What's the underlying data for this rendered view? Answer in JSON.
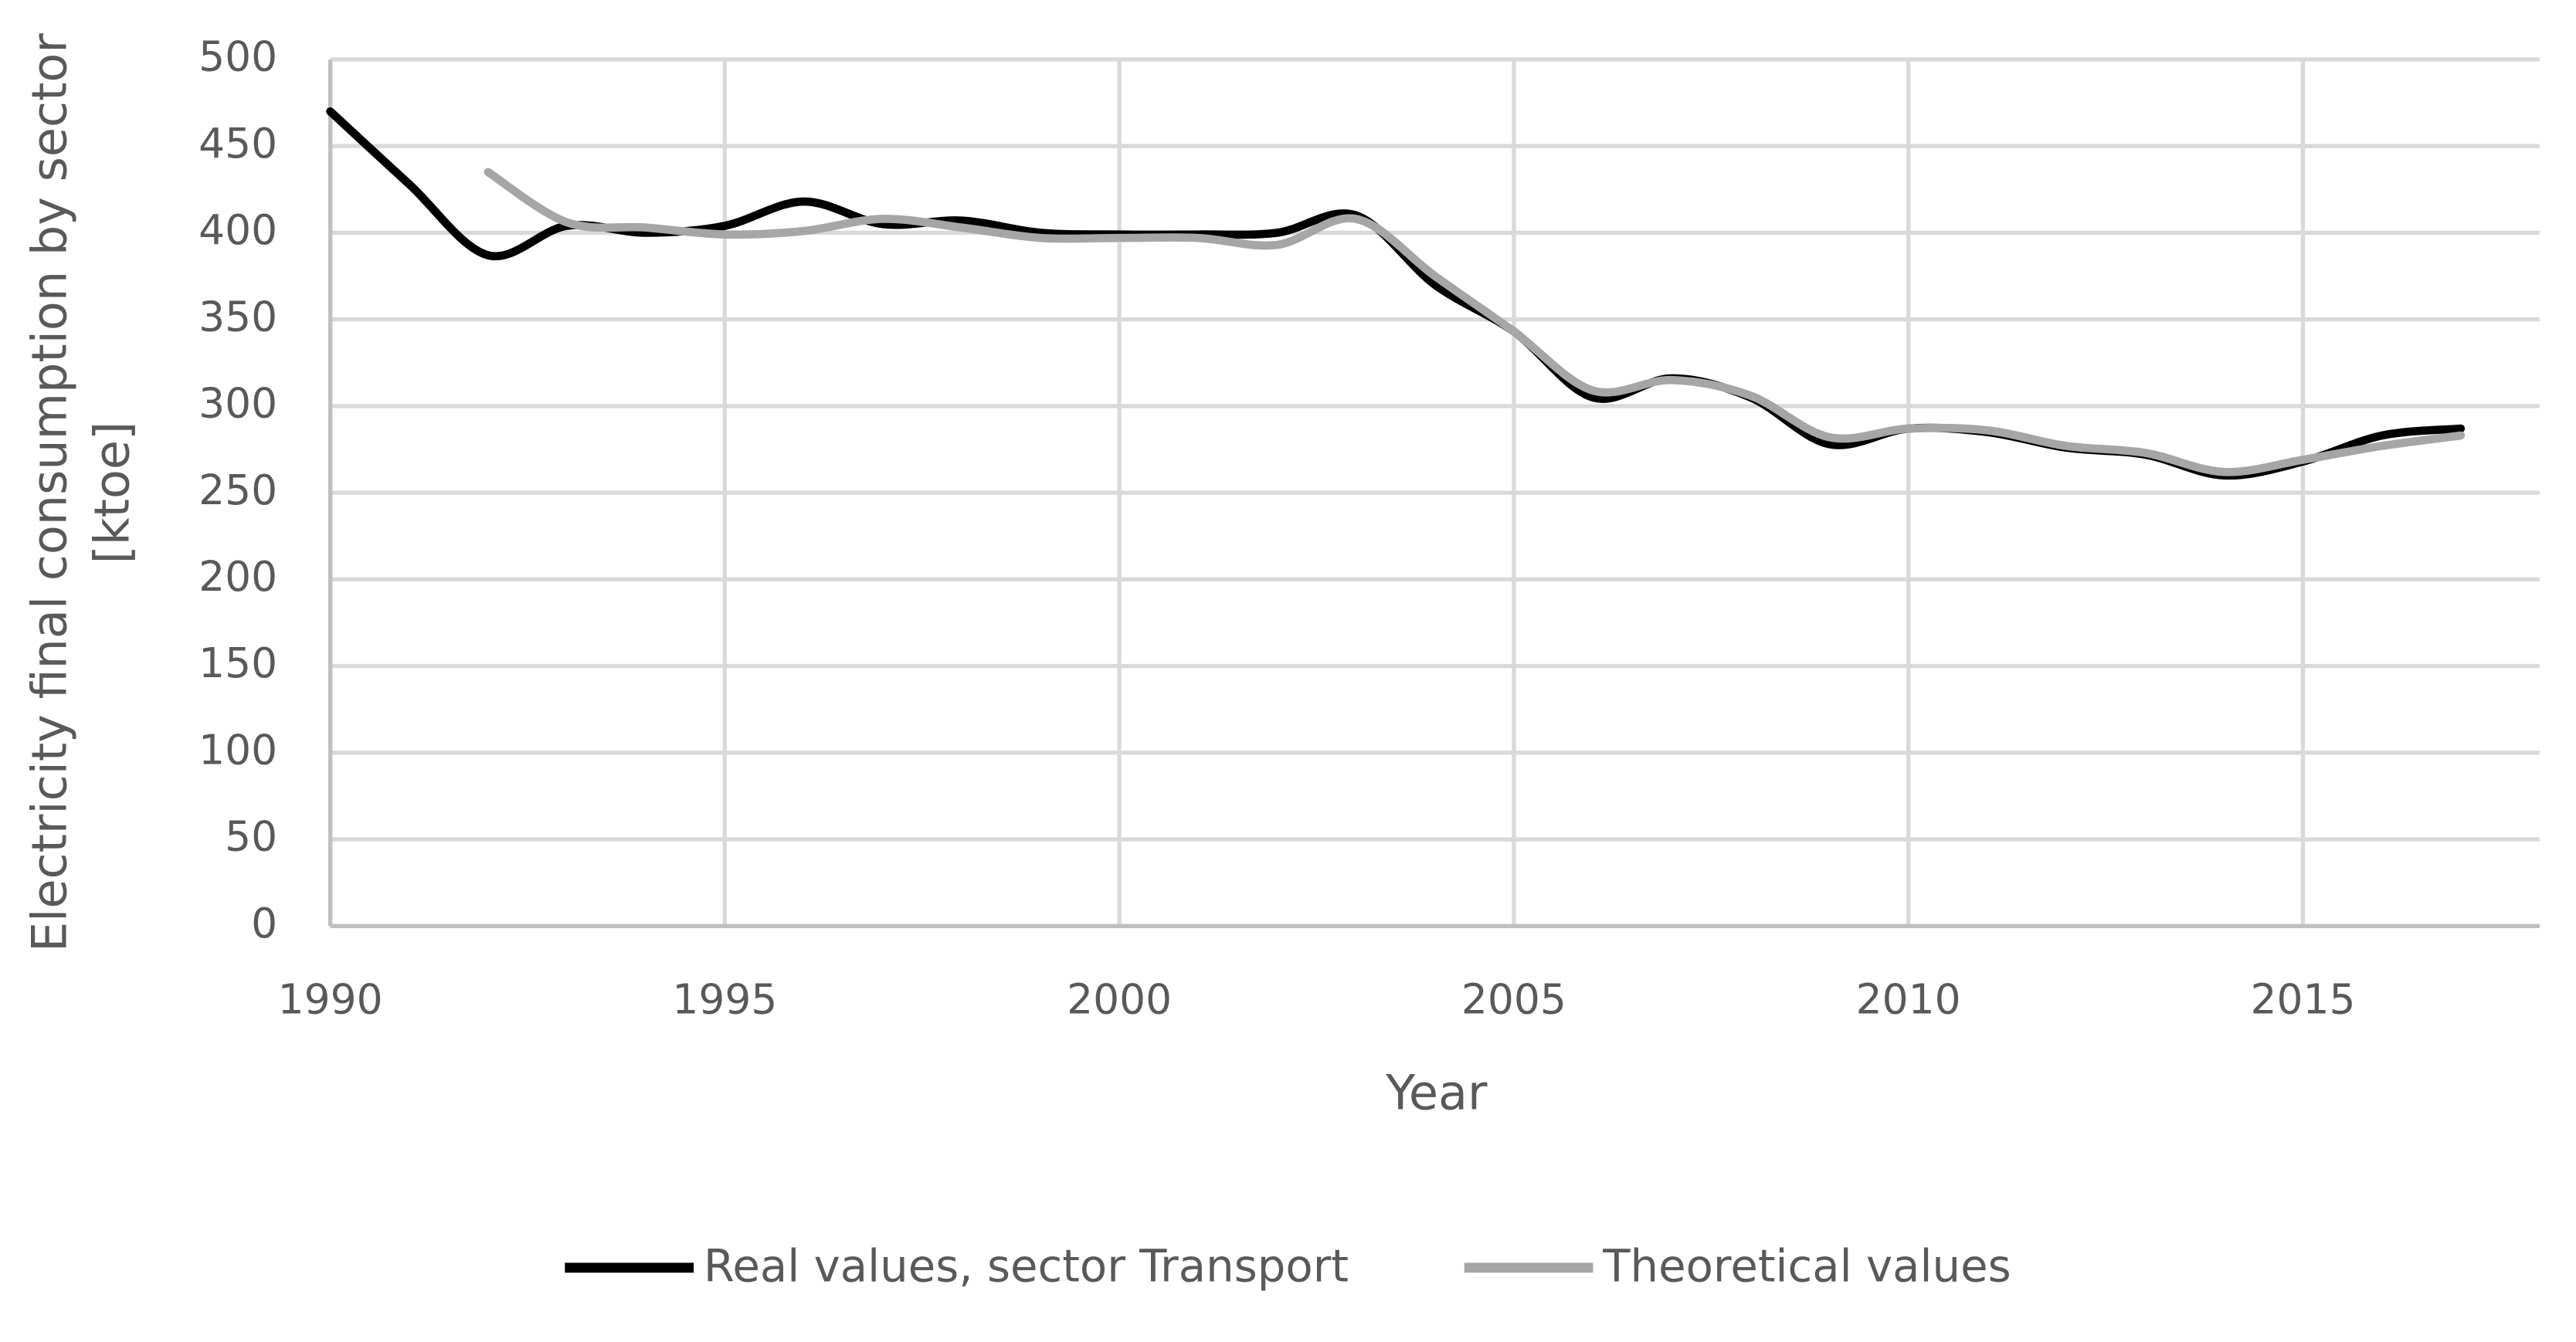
{
  "chart_data": {
    "type": "line",
    "x": [
      1990,
      1991,
      1992,
      1993,
      1994,
      1995,
      1996,
      1997,
      1998,
      1999,
      2000,
      2001,
      2002,
      2003,
      2004,
      2005,
      2006,
      2007,
      2008,
      2009,
      2010,
      2011,
      2012,
      2013,
      2014,
      2015,
      2016,
      2017
    ],
    "series": [
      {
        "name": "Real values, sector Transport",
        "color": "#000000",
        "values": [
          470,
          428,
          387,
          404,
          400,
          404,
          418,
          405,
          407,
          400,
          399,
          399,
          400,
          410,
          370,
          343,
          305,
          316,
          305,
          278,
          287,
          285,
          276,
          272,
          260,
          268,
          283,
          287
        ]
      },
      {
        "name": "Theoretical values",
        "color": "#a6a6a6",
        "values": [
          null,
          null,
          435,
          406,
          403,
          399,
          401,
          408,
          403,
          397,
          397,
          397,
          393,
          408,
          375,
          343,
          309,
          315,
          306,
          282,
          287,
          286,
          277,
          273,
          262,
          269,
          277,
          283
        ]
      }
    ],
    "x_label": "Year",
    "y_label": "Electricity final consumption by sector [ktoe]",
    "xlim": [
      1990,
      2018
    ],
    "xticks": [
      1990,
      1995,
      2000,
      2005,
      2010,
      2015
    ],
    "ylim": [
      0,
      500
    ],
    "yticks": [
      0,
      50,
      100,
      150,
      200,
      250,
      300,
      350,
      400,
      450,
      500
    ],
    "grid": true,
    "legend": "bottom"
  }
}
